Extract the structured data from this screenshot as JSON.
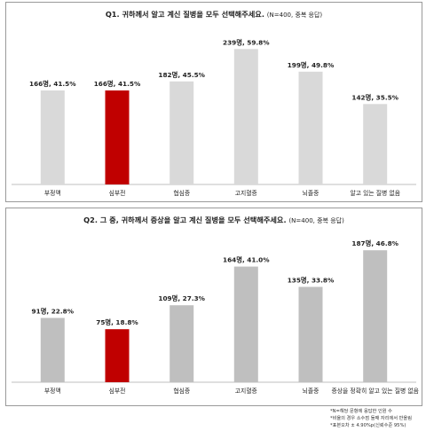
{
  "chart_data": [
    {
      "type": "bar",
      "title": "Q1. 귀하께서 알고 계신 질병을 모두 선택해주세요.",
      "subtitle": "(N=400, 중복 응답)",
      "categories": [
        "부정맥",
        "심부전",
        "협심증",
        "고지혈증",
        "뇌졸중",
        "알고 있는 질병 없음"
      ],
      "values": [
        41.5,
        41.5,
        45.5,
        59.8,
        49.8,
        35.5
      ],
      "data_labels": [
        "166명, 41.5%",
        "166명, 41.5%",
        "182명, 45.5%",
        "239명, 59.8%",
        "199명, 49.8%",
        "142명, 35.5%"
      ],
      "highlight_index": 1,
      "ylim": [
        0,
        65
      ],
      "grid": false,
      "colors": {
        "bar": "#d9d9d9",
        "highlight": "#c00000"
      }
    },
    {
      "type": "bar",
      "title": "Q2. 그 중, 귀하께서 증상을 알고 계신 질병을 모두 선택해주세요.",
      "subtitle": "(N=400, 중복 응답)",
      "categories": [
        "부정맥",
        "심부전",
        "협심증",
        "고지혈증",
        "뇌졸중",
        "증상을 정확히 알고 있는 질병 없음"
      ],
      "values": [
        22.8,
        18.8,
        27.3,
        41.0,
        33.8,
        46.8
      ],
      "data_labels": [
        "91명, 22.8%",
        "75명, 18.8%",
        "109명, 27.3%",
        "164명, 41.0%",
        "135명, 33.8%",
        "187명, 46.8%"
      ],
      "highlight_index": 1,
      "ylim": [
        0,
        50
      ],
      "grid": false,
      "colors": {
        "bar": "#bfbfbf",
        "highlight": "#c00000"
      }
    }
  ],
  "footnotes": [
    "*N=해당 문항에 응답한 인원 수",
    "*비율의 경우 소수점 둘째 자리에서 반올림",
    "*표본오차 ± 4.90%p(신뢰수준 95%)"
  ]
}
